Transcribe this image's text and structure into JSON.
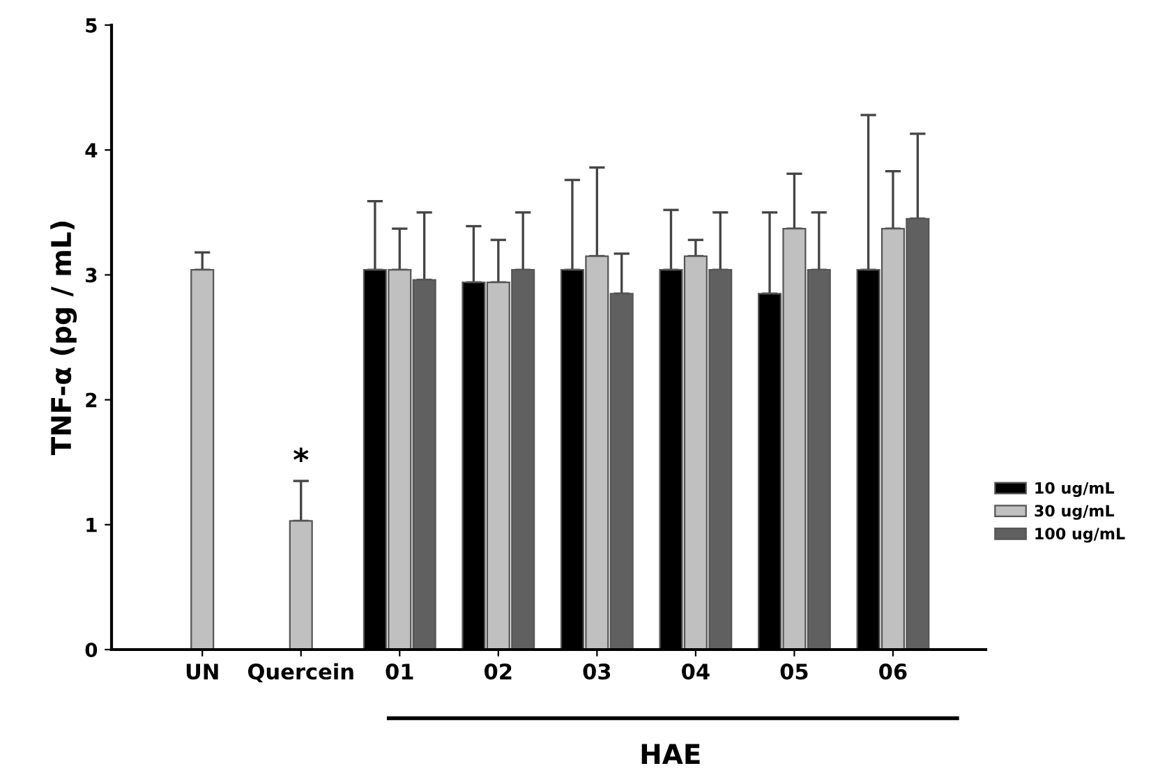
{
  "chart_data": {
    "type": "bar",
    "ylabel": "TNF-α (pg / mL)",
    "categories": [
      "UN",
      "Quercein",
      "01",
      "02",
      "03",
      "04",
      "05",
      "06"
    ],
    "series": [
      {
        "name": "10 ug/mL",
        "color": "#000000",
        "values": [
          null,
          null,
          3.04,
          2.94,
          3.04,
          3.04,
          2.85,
          3.04
        ],
        "errors": [
          null,
          null,
          [
            3.04,
            3.59
          ],
          [
            2.94,
            3.39
          ],
          [
            3.04,
            3.76
          ],
          [
            3.04,
            3.52
          ],
          [
            2.85,
            3.5
          ],
          [
            3.04,
            4.28
          ]
        ]
      },
      {
        "name": "30 ug/mL",
        "color": "#c0c0c0",
        "values": [
          3.04,
          1.03,
          3.04,
          2.94,
          3.15,
          3.15,
          3.37,
          3.37
        ],
        "errors": [
          [
            3.04,
            3.18
          ],
          [
            1.03,
            1.35
          ],
          [
            3.04,
            3.37
          ],
          [
            2.94,
            3.28
          ],
          [
            3.15,
            3.86
          ],
          [
            3.15,
            3.28
          ],
          [
            3.37,
            3.81
          ],
          [
            3.37,
            3.83
          ]
        ]
      },
      {
        "name": "100 ug/mL",
        "color": "#606060",
        "values": [
          null,
          null,
          2.96,
          3.04,
          2.85,
          3.04,
          3.04,
          3.45
        ],
        "errors": [
          null,
          null,
          [
            2.96,
            3.5
          ],
          [
            3.04,
            3.5
          ],
          [
            2.85,
            3.17
          ],
          [
            3.04,
            3.5
          ],
          [
            3.04,
            3.5
          ],
          [
            3.45,
            4.13
          ]
        ]
      }
    ],
    "ylim": [
      0,
      5
    ],
    "yticks": [
      0,
      1,
      2,
      3,
      4,
      5
    ],
    "grid": false,
    "legend": "right",
    "annotations": [
      {
        "text": "*",
        "x": "Quercein",
        "y": 1.35
      },
      "HAE"
    ]
  }
}
